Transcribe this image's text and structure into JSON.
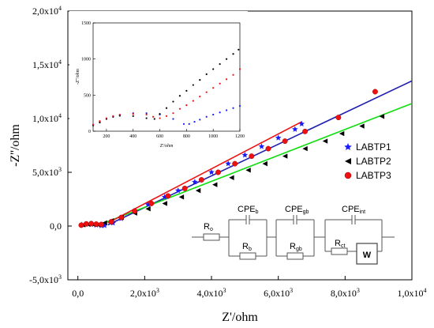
{
  "chart_data": {
    "type": "scatter",
    "xlabel": "Z'/ohm",
    "ylabel": "-Z''/ohm",
    "xlim": [
      -300,
      10000
    ],
    "ylim": [
      -5000,
      20000
    ],
    "x_ticks": [
      {
        "v": 0,
        "mant": "0,0",
        "exp": ""
      },
      {
        "v": 2000,
        "mant": "2,0x10",
        "exp": "3"
      },
      {
        "v": 4000,
        "mant": "4,0x10",
        "exp": "3"
      },
      {
        "v": 6000,
        "mant": "6,0x10",
        "exp": "3"
      },
      {
        "v": 8000,
        "mant": "8,0x10",
        "exp": "3"
      },
      {
        "v": 10000,
        "mant": "1,0x10",
        "exp": "4"
      }
    ],
    "y_ticks": [
      {
        "v": -5000,
        "mant": "-5,0x10",
        "exp": "3"
      },
      {
        "v": 0,
        "mant": "0,0",
        "exp": ""
      },
      {
        "v": 5000,
        "mant": "5,0x10",
        "exp": "3"
      },
      {
        "v": 10000,
        "mant": "1,0x10",
        "exp": "4"
      },
      {
        "v": 15000,
        "mant": "1,5x10",
        "exp": "4"
      },
      {
        "v": 20000,
        "mant": "2,0x10",
        "exp": "4"
      }
    ],
    "legend_position": "right",
    "series": [
      {
        "name": "LABTP1",
        "color": "#1a1aff",
        "marker": "star",
        "fit_color": "#1f1fb0",
        "x": [
          120,
          250,
          400,
          550,
          700,
          800,
          1050,
          1300,
          1700,
          2100,
          2600,
          3000,
          3500,
          4000,
          4500,
          5000,
          5500,
          6000,
          6500,
          6700
        ],
        "y": [
          120,
          180,
          150,
          90,
          40,
          50,
          280,
          700,
          1400,
          2000,
          2700,
          3300,
          4100,
          5000,
          5800,
          6600,
          7400,
          8200,
          9000,
          9500
        ],
        "fit": {
          "x": [
            900,
            10000
          ],
          "y": [
            110,
            13500
          ]
        }
      },
      {
        "name": "LABTP2",
        "color": "#000000",
        "marker": "triangle",
        "fit_color": "#11dd11",
        "x": [
          150,
          300,
          450,
          600,
          800,
          1000,
          1300,
          1700,
          2100,
          2600,
          3100,
          3600,
          4100,
          4600,
          5100,
          5600,
          6200,
          6800,
          7400,
          7900,
          8500,
          9100
        ],
        "y": [
          110,
          160,
          150,
          120,
          300,
          500,
          800,
          1200,
          1600,
          2100,
          2700,
          3300,
          3850,
          4500,
          5200,
          5800,
          6500,
          7200,
          7900,
          8600,
          9300,
          10200
        ],
        "fit": {
          "x": [
            800,
            10000
          ],
          "y": [
            300,
            11400
          ]
        }
      },
      {
        "name": "LABTP3",
        "color": "#ee1111",
        "marker": "circle",
        "fit_color": "#ee1111",
        "x": [
          100,
          250,
          400,
          550,
          700,
          1000,
          1300,
          1700,
          2200,
          2700,
          3200,
          3700,
          4200,
          4700,
          5200,
          5700,
          6200,
          6800,
          7800,
          8900
        ],
        "y": [
          80,
          200,
          230,
          180,
          150,
          400,
          800,
          1400,
          2100,
          2800,
          3500,
          4300,
          5000,
          5800,
          6500,
          7200,
          7900,
          8800,
          10100,
          12500
        ],
        "fit": {
          "x": [
            900,
            6700
          ],
          "y": [
            300,
            9700
          ]
        }
      }
    ],
    "inset": {
      "xlabel": "Z'/ohm",
      "ylabel": "-Z''/ohm",
      "xlim": [
        100,
        1200
      ],
      "ylim": [
        0,
        1500
      ],
      "x_ticks": [
        200,
        400,
        600,
        800,
        1000,
        1200
      ],
      "y_ticks": [
        0,
        500,
        1000,
        1500
      ],
      "series": [
        {
          "name": "LABTP1",
          "color": "#1a1aff",
          "x": [
            100,
            150,
            200,
            250,
            300,
            400,
            500,
            600,
            700,
            780,
            820,
            860,
            900,
            950,
            1000,
            1050,
            1100,
            1150,
            1200
          ],
          "y": [
            90,
            130,
            170,
            200,
            225,
            250,
            250,
            230,
            170,
            100,
            100,
            130,
            160,
            200,
            230,
            260,
            290,
            320,
            350
          ]
        },
        {
          "name": "LABTP2",
          "color": "#000000",
          "x": [
            100,
            150,
            200,
            250,
            300,
            400,
            500,
            560,
            600,
            650,
            700,
            750,
            800,
            850,
            900,
            950,
            1000,
            1050,
            1100,
            1150,
            1190
          ],
          "y": [
            80,
            120,
            170,
            200,
            215,
            210,
            180,
            170,
            240,
            320,
            410,
            490,
            560,
            640,
            710,
            790,
            860,
            930,
            1000,
            1070,
            1130
          ]
        },
        {
          "name": "LABTP3",
          "color": "#ee1111",
          "x": [
            100,
            150,
            200,
            250,
            300,
            400,
            500,
            550,
            600,
            650,
            700,
            750,
            800,
            850,
            900,
            950,
            1000,
            1050,
            1100,
            1150,
            1200
          ],
          "y": [
            90,
            140,
            180,
            210,
            230,
            240,
            230,
            200,
            180,
            210,
            250,
            310,
            360,
            420,
            480,
            540,
            600,
            660,
            720,
            780,
            860
          ]
        }
      ]
    },
    "circuit": {
      "r0": {
        "main": "R",
        "sub": "o"
      },
      "rb": {
        "main": "R",
        "sub": "b"
      },
      "cpeb": {
        "main": "CPE",
        "sub": "b"
      },
      "rgb": {
        "main": "R",
        "sub": "gb"
      },
      "cpegb": {
        "main": "CPE",
        "sub": "gb"
      },
      "rct": {
        "main": "R",
        "sub": "ct"
      },
      "cpeint": {
        "main": "CPE",
        "sub": "int"
      },
      "w": "W"
    }
  }
}
